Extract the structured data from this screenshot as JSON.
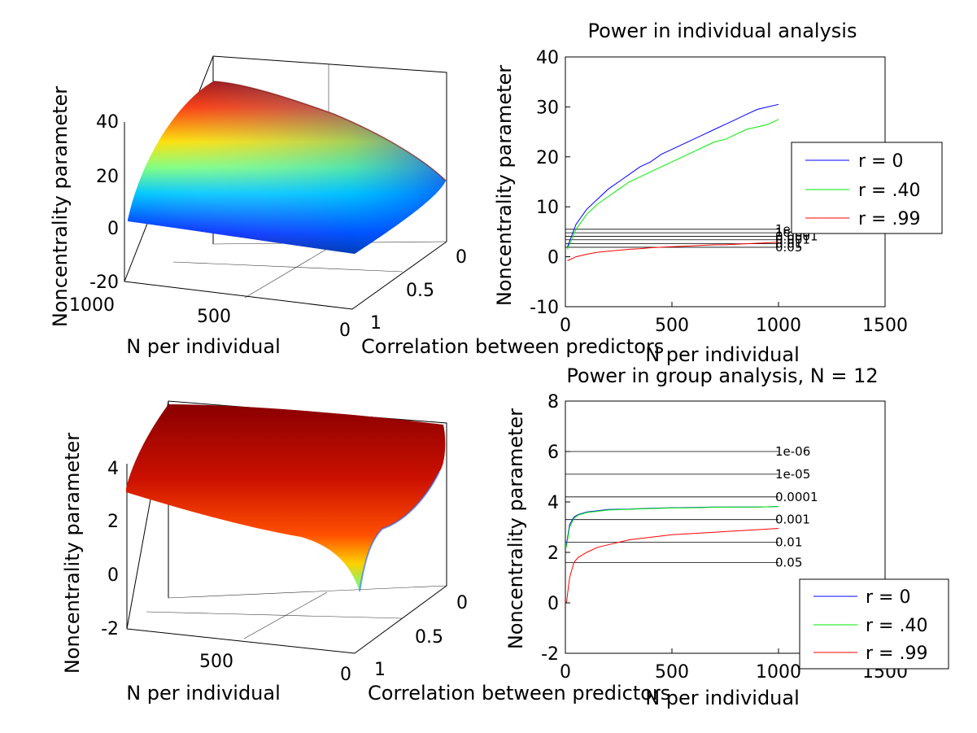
{
  "chart_data": [
    {
      "id": "ind3d",
      "type": "surface3d",
      "title": "",
      "xlabel": "N per individual",
      "ylabel": "Correlation between predictors",
      "zlabel": "Noncentrality parameter",
      "x_ticks": [
        "1000",
        "500",
        "0"
      ],
      "y_ticks": [
        "0",
        "0.5",
        "1"
      ],
      "z_ticks": [
        "40",
        "20",
        "0",
        "-20"
      ],
      "zlim": [
        -20,
        50
      ],
      "colormap": "jet",
      "grid": true
    },
    {
      "id": "ind2d",
      "type": "line",
      "title": "Power in individual analysis",
      "xlabel": "N per individual",
      "ylabel": "Noncentrality parameter",
      "xlim": [
        0,
        1500
      ],
      "ylim": [
        -10,
        40
      ],
      "x_ticks": [
        "0",
        "500",
        "1000",
        "1500"
      ],
      "y_ticks": [
        "-10",
        "0",
        "10",
        "20",
        "30",
        "40"
      ],
      "legend_position": "right",
      "series": [
        {
          "name": "r = 0",
          "color": "#0000ff",
          "x": [
            10,
            50,
            100,
            150,
            200,
            250,
            300,
            350,
            400,
            450,
            500,
            550,
            600,
            650,
            700,
            750,
            800,
            850,
            900,
            950,
            1000
          ],
          "values": [
            2.0,
            6.5,
            9.5,
            11.5,
            13.5,
            15.0,
            16.5,
            18.0,
            19.0,
            20.5,
            21.5,
            22.5,
            23.5,
            24.5,
            25.5,
            26.5,
            27.5,
            28.5,
            29.5,
            30.0,
            30.5
          ]
        },
        {
          "name": "r = .40",
          "color": "#00ee00",
          "x": [
            10,
            50,
            100,
            150,
            200,
            250,
            300,
            350,
            400,
            450,
            500,
            550,
            600,
            650,
            700,
            750,
            800,
            850,
            900,
            950,
            1000
          ],
          "values": [
            1.5,
            5.5,
            8.5,
            10.5,
            12.0,
            13.5,
            15.0,
            16.0,
            17.0,
            18.0,
            19.0,
            20.0,
            21.0,
            22.0,
            23.0,
            23.5,
            24.5,
            25.5,
            26.0,
            26.5,
            27.5
          ]
        },
        {
          "name": "r = .99",
          "color": "#ff0000",
          "x": [
            10,
            50,
            100,
            150,
            200,
            250,
            300,
            350,
            400,
            450,
            500,
            550,
            600,
            650,
            700,
            750,
            800,
            850,
            900,
            950,
            1000
          ],
          "values": [
            -0.8,
            0.0,
            0.5,
            0.9,
            1.1,
            1.3,
            1.5,
            1.6,
            1.8,
            1.9,
            2.0,
            2.1,
            2.2,
            2.3,
            2.4,
            2.4,
            2.5,
            2.6,
            2.7,
            2.8,
            2.9
          ]
        }
      ],
      "thresholds": [
        {
          "label": "0.05",
          "value": 1.9
        },
        {
          "label": "0.01",
          "value": 2.6
        },
        {
          "label": "0.001",
          "value": 3.4
        },
        {
          "label": "0.0001",
          "value": 4.1
        },
        {
          "label": "1e-05",
          "value": 4.8
        },
        {
          "label": "1e-06",
          "value": 5.5
        }
      ]
    },
    {
      "id": "grp3d",
      "type": "surface3d",
      "title": "",
      "xlabel": "N per individual",
      "ylabel": "Correlation between predictors",
      "zlabel": "Noncentrality parameter",
      "x_ticks": [
        "500",
        "0"
      ],
      "y_ticks": [
        "0",
        "0.5",
        "1"
      ],
      "z_ticks": [
        "4",
        "2",
        "0",
        "-2"
      ],
      "zlim": [
        -2,
        5
      ],
      "colormap": "jet",
      "grid": true
    },
    {
      "id": "grp2d",
      "type": "line",
      "title": "Power in group analysis, N = 12",
      "xlabel": "N per individual",
      "ylabel": "Noncentrality parameter",
      "xlim": [
        0,
        1500
      ],
      "ylim": [
        -2,
        8
      ],
      "x_ticks": [
        "0",
        "500",
        "1000",
        "1500"
      ],
      "y_ticks": [
        "-2",
        "0",
        "2",
        "4",
        "6",
        "8"
      ],
      "legend_position": "bottom-right",
      "series": [
        {
          "name": "r = 0",
          "color": "#0000ff",
          "x": [
            5,
            20,
            40,
            60,
            80,
            100,
            150,
            200,
            300,
            400,
            500,
            600,
            700,
            800,
            900,
            1000
          ],
          "values": [
            2.3,
            3.1,
            3.4,
            3.5,
            3.55,
            3.6,
            3.65,
            3.7,
            3.72,
            3.75,
            3.77,
            3.78,
            3.8,
            3.8,
            3.8,
            3.82
          ]
        },
        {
          "name": "r = .40",
          "color": "#00ee00",
          "x": [
            5,
            20,
            40,
            60,
            80,
            100,
            150,
            200,
            300,
            400,
            500,
            600,
            700,
            800,
            900,
            1000
          ],
          "values": [
            2.2,
            3.0,
            3.35,
            3.48,
            3.53,
            3.58,
            3.63,
            3.68,
            3.71,
            3.74,
            3.76,
            3.77,
            3.79,
            3.8,
            3.8,
            3.82
          ]
        },
        {
          "name": "r = .99",
          "color": "#ff0000",
          "x": [
            5,
            20,
            40,
            60,
            80,
            100,
            150,
            200,
            300,
            400,
            500,
            600,
            700,
            800,
            900,
            1000
          ],
          "values": [
            0.0,
            1.0,
            1.6,
            1.8,
            1.9,
            2.0,
            2.2,
            2.3,
            2.5,
            2.6,
            2.7,
            2.75,
            2.8,
            2.85,
            2.9,
            2.95
          ]
        }
      ],
      "thresholds": [
        {
          "label": "1e-06",
          "value": 6.0
        },
        {
          "label": "1e-05",
          "value": 5.1
        },
        {
          "label": "0.0001",
          "value": 4.2
        },
        {
          "label": "0.001",
          "value": 3.3
        },
        {
          "label": "0.01",
          "value": 2.4
        },
        {
          "label": "0.05",
          "value": 1.6
        }
      ]
    }
  ]
}
